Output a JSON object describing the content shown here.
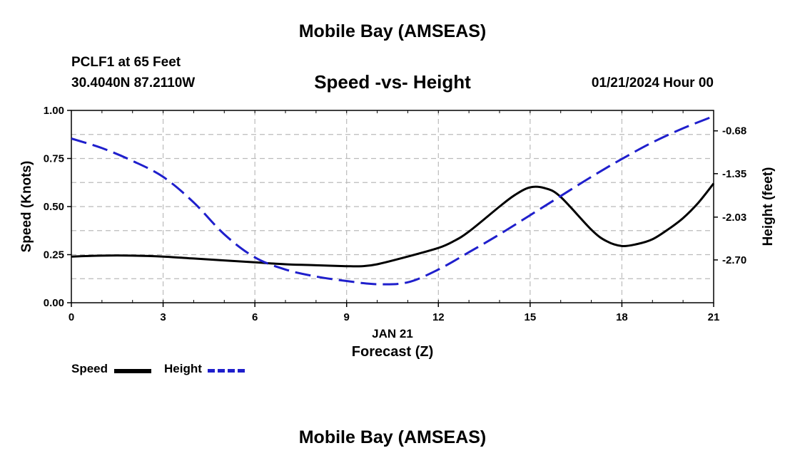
{
  "header": {
    "title": "Mobile Bay (AMSEAS)",
    "station": "PCLF1 at 65 Feet",
    "coords": "30.4040N  87.2110W",
    "subtitle": "Speed -vs- Height",
    "datetime": "01/21/2024 Hour 00"
  },
  "footer": {
    "title": "Mobile Bay (AMSEAS)"
  },
  "legend": {
    "speed_label": "Speed",
    "height_label": "Height"
  },
  "chart_data": {
    "type": "line",
    "title": "Speed -vs- Height",
    "xlabel": "Forecast (Z)",
    "x_date_label": "JAN 21",
    "ylabel_left": "Speed (Knots)",
    "ylabel_right": "Height (feet)",
    "xlim": [
      0,
      21
    ],
    "ylim_left": [
      0,
      1
    ],
    "ylim_right": [
      -3.37,
      -0.36
    ],
    "x_ticks": [
      0,
      3,
      6,
      9,
      12,
      15,
      18,
      21
    ],
    "y_left_ticks": [
      "0.00",
      "0.25",
      "0.50",
      "0.75",
      "1.00"
    ],
    "y_right_ticks": [
      "-0.68",
      "-1.35",
      "-2.03",
      "-2.70"
    ],
    "grid": true,
    "legend_position": "bottom-left",
    "series": [
      {
        "name": "Speed",
        "axis": "left",
        "color": "#000000",
        "style": "solid",
        "x": [
          0,
          1,
          2,
          3,
          4,
          5,
          6,
          7,
          8,
          9,
          9.5,
          10,
          11,
          12,
          12.5,
          13,
          14,
          14.5,
          15,
          15.5,
          16,
          17,
          17.5,
          18,
          18.5,
          19,
          19.5,
          20,
          20.5,
          21
        ],
        "values": [
          0.24,
          0.245,
          0.245,
          0.24,
          0.23,
          0.22,
          0.21,
          0.2,
          0.195,
          0.19,
          0.19,
          0.2,
          0.24,
          0.285,
          0.32,
          0.37,
          0.5,
          0.56,
          0.6,
          0.595,
          0.55,
          0.38,
          0.32,
          0.295,
          0.305,
          0.33,
          0.38,
          0.44,
          0.52,
          0.62
        ]
      },
      {
        "name": "Height",
        "axis": "right",
        "color": "#1f1fcc",
        "style": "dashed",
        "x": [
          0,
          1,
          2,
          3,
          4,
          5,
          6,
          7,
          8,
          9,
          10,
          11,
          12,
          13,
          14,
          15,
          16,
          17,
          18,
          19,
          20,
          21
        ],
        "values": [
          -0.8,
          -0.95,
          -1.15,
          -1.4,
          -1.8,
          -2.3,
          -2.66,
          -2.85,
          -2.96,
          -3.03,
          -3.08,
          -3.05,
          -2.85,
          -2.58,
          -2.3,
          -2.0,
          -1.7,
          -1.4,
          -1.12,
          -0.86,
          -0.64,
          -0.45
        ]
      }
    ]
  }
}
